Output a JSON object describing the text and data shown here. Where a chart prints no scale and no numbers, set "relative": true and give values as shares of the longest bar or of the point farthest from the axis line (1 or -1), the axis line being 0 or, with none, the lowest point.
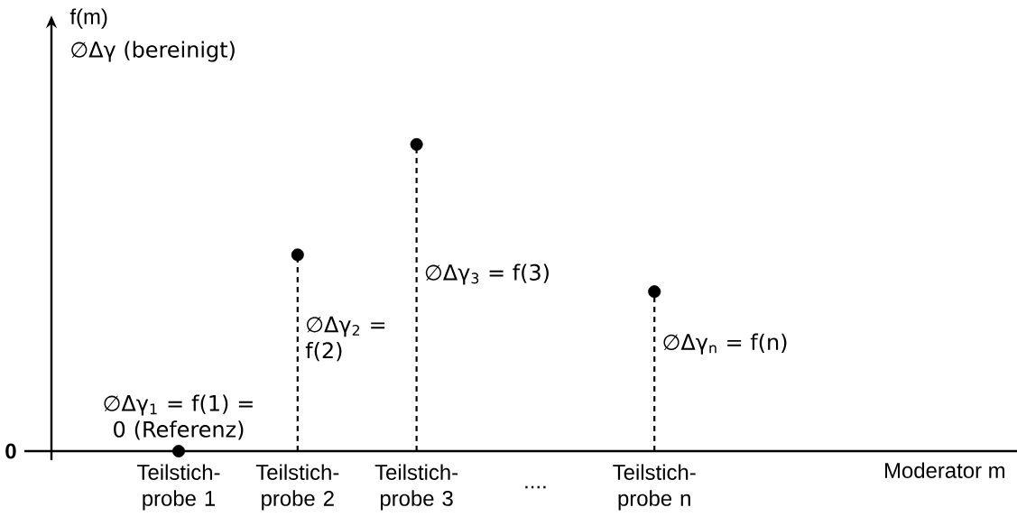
{
  "chart_data": {
    "type": "lollipop",
    "relative": true,
    "categories": [
      "Teilstich-probe 1",
      "Teilstich-probe 2",
      "Teilstich-probe 3",
      "....",
      "Teilstich-probe n"
    ],
    "values": [
      0,
      0.64,
      1,
      null,
      0.52
    ],
    "color": "#000000",
    "marker": "circle",
    "line_style": "dashed",
    "annotations": [
      "f(m)",
      "∅Δγ (bereinigt)",
      "0",
      "∅Δγ$_{1}$ = f(1) = 0 (Referenz)",
      "∅Δγ$_{2}$ = f(2)",
      "∅Δγ$_{3}$ = f(3)",
      "∅Δγ$_{n}$ = f(n)",
      "Moderator m"
    ]
  }
}
